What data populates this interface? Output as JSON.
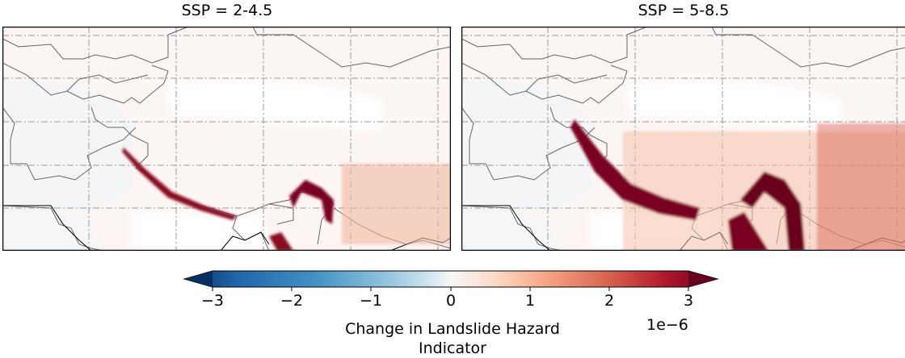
{
  "panels": [
    {
      "title": "SSP = 2-4.5",
      "intensity": 0.55
    },
    {
      "title": "SSP = 5-8.5",
      "intensity": 1.0
    }
  ],
  "colorbar": {
    "colormap": "RdBu_r",
    "ticks": [
      "−3",
      "−2",
      "−1",
      "0",
      "1",
      "2",
      "3"
    ],
    "tick_values": [
      -3,
      -2,
      -1,
      0,
      1,
      2,
      3
    ],
    "range": [
      -3,
      3
    ],
    "extend": "both",
    "label_line1": "Change in Landslide Hazard",
    "label_line2": "Indicator",
    "exponent": "1e−6"
  },
  "colors": {
    "low": "#053061",
    "mid": "#f7f7f7",
    "high": "#67001f"
  }
}
